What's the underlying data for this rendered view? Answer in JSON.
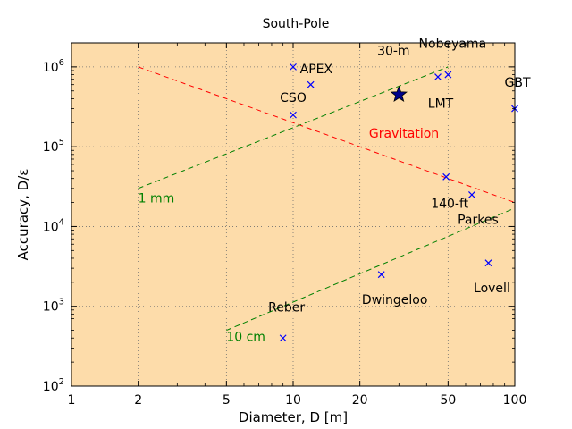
{
  "chart_data": {
    "type": "scatter",
    "title": "",
    "xlabel": "Diameter, D [m]",
    "ylabel": "Accuracy, D/ε",
    "xscale": "log",
    "yscale": "log",
    "xlim": [
      1,
      100
    ],
    "ylim": [
      100,
      2000000
    ],
    "grid": true,
    "background": "#fddcaa",
    "x_ticks": [
      {
        "value": 1,
        "label": "1"
      },
      {
        "value": 2,
        "label": "2"
      },
      {
        "value": 5,
        "label": "5"
      },
      {
        "value": 10,
        "label": "10"
      },
      {
        "value": 20,
        "label": "20"
      },
      {
        "value": 50,
        "label": "50"
      },
      {
        "value": 100,
        "label": "100"
      }
    ],
    "y_ticks": [
      {
        "value": 100,
        "base": "10",
        "exp": "2"
      },
      {
        "value": 1000,
        "base": "10",
        "exp": "3"
      },
      {
        "value": 10000,
        "base": "10",
        "exp": "4"
      },
      {
        "value": 100000,
        "base": "10",
        "exp": "5"
      },
      {
        "value": 1000000,
        "base": "10",
        "exp": "6"
      }
    ],
    "points": [
      {
        "label": "South-Pole",
        "x": 10,
        "y": 1000000,
        "lx": 3,
        "ly": 0.055,
        "anchor": "middle"
      },
      {
        "label": "APEX",
        "x": 12,
        "y": 600000,
        "lx": -12,
        "ly": 0.02,
        "anchor": "start"
      },
      {
        "label": "CSO",
        "x": 10,
        "y": 250000,
        "lx": 0,
        "ly": 0.022,
        "anchor": "middle"
      },
      {
        "label": "Nobeyama",
        "x": 50,
        "y": 800000,
        "lx": 5,
        "ly": 0.039,
        "anchor": "middle"
      },
      {
        "label": "LMT",
        "x": 45,
        "y": 750000,
        "lx": 3,
        "ly": -0.033,
        "anchor": "middle"
      },
      {
        "label": "GBT",
        "x": 100,
        "y": 300000,
        "lx": 3,
        "ly": 0.033,
        "anchor": "middle"
      },
      {
        "label": "140-ft",
        "x": 49,
        "y": 42000,
        "lx": 4,
        "ly": -0.033,
        "anchor": "middle"
      },
      {
        "label": "Parkes",
        "x": 64,
        "y": 25000,
        "lx": 7,
        "ly": -0.031,
        "anchor": "middle"
      },
      {
        "label": "Lovell",
        "x": 76,
        "y": 3500,
        "lx": 4,
        "ly": -0.031,
        "anchor": "middle"
      },
      {
        "label": "Dwingeloo",
        "x": 25,
        "y": 2500,
        "lx": 15,
        "ly": -0.031,
        "anchor": "middle"
      },
      {
        "label": "Reber",
        "x": 9,
        "y": 400,
        "lx": 4,
        "ly": 0.039,
        "anchor": "middle"
      }
    ],
    "highlight": {
      "label": "30-m",
      "x": 30,
      "y": 450000,
      "lx": -6,
      "ly": 0.055,
      "anchor": "middle"
    },
    "lines": [
      {
        "name": "Gravitation",
        "color": "#ff0000",
        "x": [
          2,
          100
        ],
        "y": [
          1000000,
          20000
        ],
        "label_at": [
          22,
          130000
        ],
        "anchor": "start"
      },
      {
        "name": "1 mm",
        "color": "#008000",
        "x": [
          2,
          50
        ],
        "y": [
          30000,
          1000000
        ],
        "label_at": [
          2,
          20000
        ],
        "anchor": "start"
      },
      {
        "name": "10 cm",
        "color": "#008000",
        "x": [
          5,
          100
        ],
        "y": [
          500,
          17000
        ],
        "label_at": [
          5,
          370
        ],
        "anchor": "start"
      }
    ],
    "colors": {
      "marker": "#0000ff",
      "star": "#00008b",
      "axis": "#000000",
      "grid": "#707070",
      "text": "#000000"
    }
  }
}
